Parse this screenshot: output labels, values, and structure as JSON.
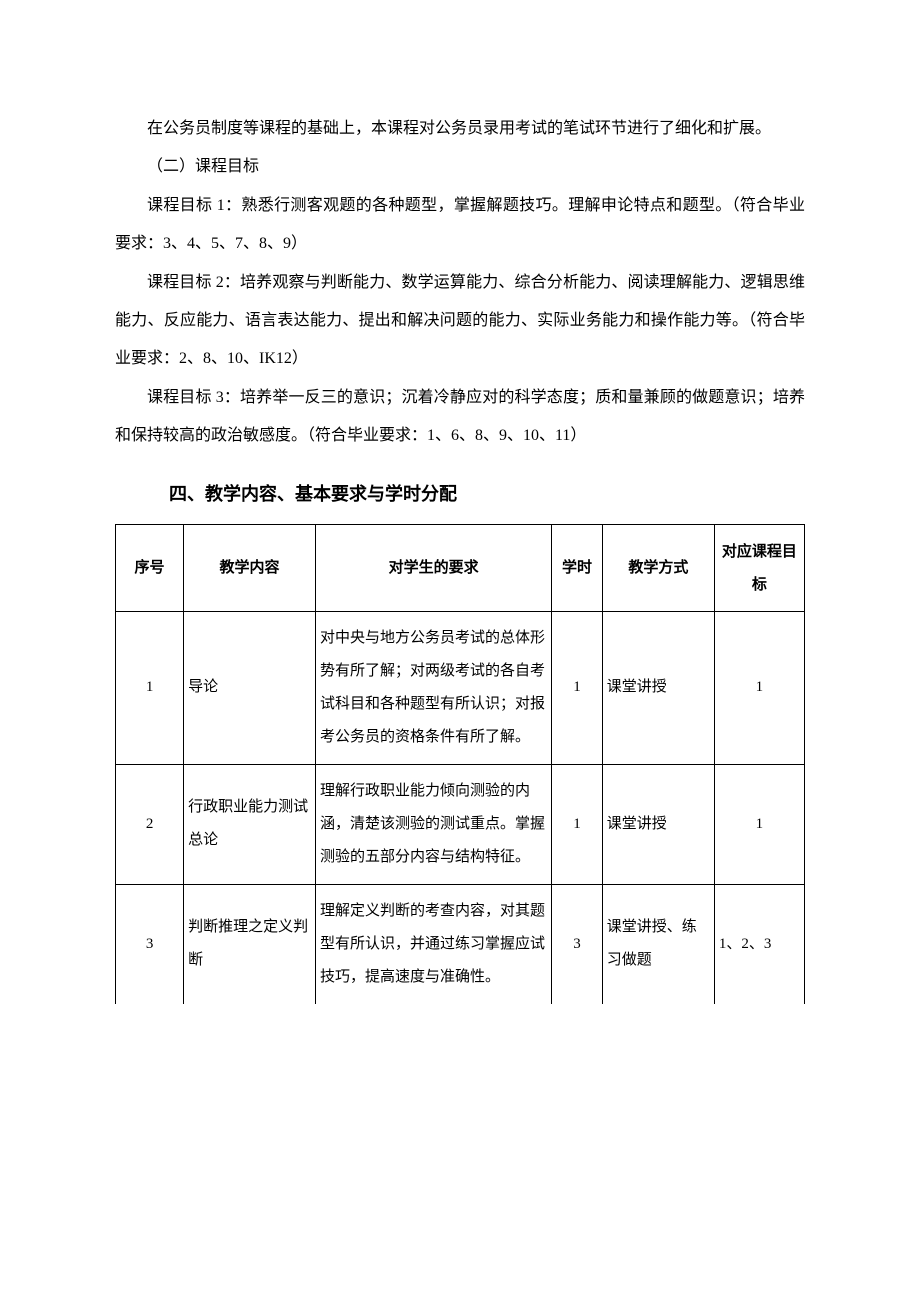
{
  "intro_para": "在公务员制度等课程的基础上，本课程对公务员录用考试的笔试环节进行了细化和扩展。",
  "subheading": "（二）课程目标",
  "goal1": "课程目标 1：熟悉行测客观题的各种题型，掌握解题技巧。理解申论特点和题型。（符合毕业要求：3、4、5、7、8、9）",
  "goal2": "课程目标 2：培养观察与判断能力、数学运算能力、综合分析能力、阅读理解能力、逻辑思维能力、反应能力、语言表达能力、提出和解决问题的能力、实际业务能力和操作能力等。（符合毕业要求：2、8、10、IK12）",
  "goal3": "课程目标 3：培养举一反三的意识；沉着冷静应对的科学态度；质和量兼顾的做题意识；培养和保持较高的政治敏感度。（符合毕业要求：1、6、8、9、10、11）",
  "section_title": "四、教学内容、基本要求与学时分配",
  "table": {
    "headers": {
      "num": "序号",
      "content": "教学内容",
      "requirement": "对学生的要求",
      "hours": "学时",
      "method": "教学方式",
      "goal": "对应课程目标"
    },
    "rows": [
      {
        "num": "1",
        "content": "导论",
        "requirement": "对中央与地方公务员考试的总体形势有所了解；对两级考试的各自考试科目和各种题型有所认识；对报考公务员的资格条件有所了解。",
        "hours": "1",
        "method": "课堂讲授",
        "goal": "1"
      },
      {
        "num": "2",
        "content": "行政职业能力测试总论",
        "requirement": "理解行政职业能力倾向测验的内涵，清楚该测验的测试重点。掌握测验的五部分内容与结构特征。",
        "hours": "1",
        "method": "课堂讲授",
        "goal": "1"
      },
      {
        "num": "3",
        "content": "判断推理之定义判断",
        "requirement": "理解定义判断的考查内容，对其题型有所认识，并通过练习掌握应试技巧，提高速度与准确性。",
        "hours": "3",
        "method": "课堂讲授、练习做题",
        "goal": "1、2、3"
      }
    ]
  },
  "colors": {
    "text": "#000000",
    "background": "#ffffff",
    "border": "#000000"
  }
}
